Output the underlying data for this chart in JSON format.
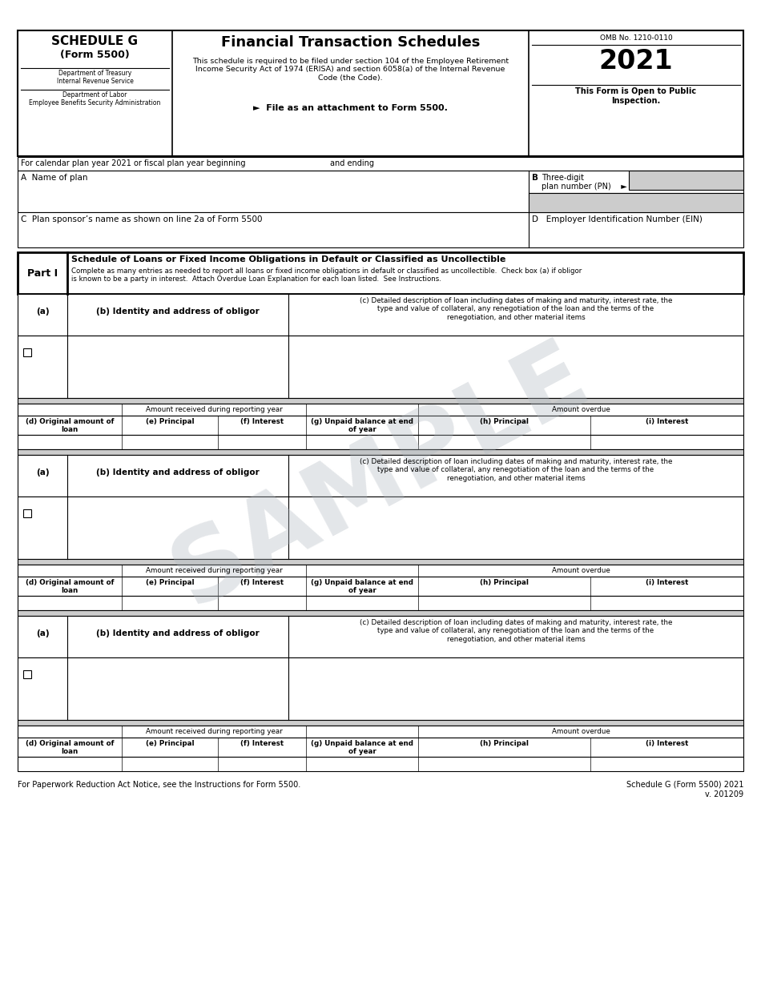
{
  "title": "Financial Transaction Schedules",
  "schedule_name": "SCHEDULE G",
  "form_number": "(Form 5500)",
  "dept_treasury": "Department of Treasury",
  "irs": "Internal Revenue Service",
  "dept_labor": "Department of Labor",
  "eba": "Employee Benefits Security Administration",
  "omb": "OMB No. 1210-0110",
  "year": "2021",
  "open_to_public": "This Form is Open to Public\nInspection.",
  "schedule_desc": "This schedule is required to be filed under section 104 of the Employee Retirement\nIncome Security Act of 1974 (ERISA) and section 6058(a) of the Internal Revenue\nCode (the Code).",
  "attachment_note": "►  File as an attachment to Form 5500.",
  "calendar_line": "For calendar plan year 2021 or fiscal plan year beginning",
  "calendar_line2": "and ending",
  "field_a": "A  Name of plan",
  "field_b_label": "B",
  "field_b1": "Three-digit",
  "field_b2": "plan number (PN)    ►",
  "field_c": "C  Plan sponsor’s name as shown on line 2a of Form 5500",
  "field_d": "D   Employer Identification Number (EIN)",
  "part_i_label": "Part I",
  "part_i_title": "Schedule of Loans or Fixed Income Obligations in Default or Classified as Uncollectible",
  "part_i_desc": "Complete as many entries as needed to report all loans or fixed income obligations in default or classified as uncollectible.  Check box (a) if obligor\nis known to be a party in interest.  Attach Overdue Loan Explanation for each loan listed.  See Instructions.",
  "col_a": "(a)",
  "col_b": "(b) Identity and address of obligor",
  "col_c": "(c) Detailed description of loan including dates of making and maturity, interest rate, the\ntype and value of collateral, any renegotiation of the loan and the terms of the\nrenegotiation, and other material items",
  "amount_received": "Amount received during reporting year",
  "amount_overdue": "Amount overdue",
  "col_d": "(d) Original amount of\nloan",
  "col_e": "(e) Principal",
  "col_f": "(f) Interest",
  "col_g": "(g) Unpaid balance at end\nof year",
  "col_h": "(h) Principal",
  "col_i": "(i) Interest",
  "footer_left": "For Paperwork Reduction Act Notice, see the Instructions for Form 5500.",
  "footer_right": "Schedule G (Form 5500) 2021\nv. 201209",
  "sample_text": "SAMPLE",
  "bg_color": "#ffffff",
  "border_color": "#000000",
  "light_gray": "#cccccc",
  "sample_color": "#b0b8c0"
}
